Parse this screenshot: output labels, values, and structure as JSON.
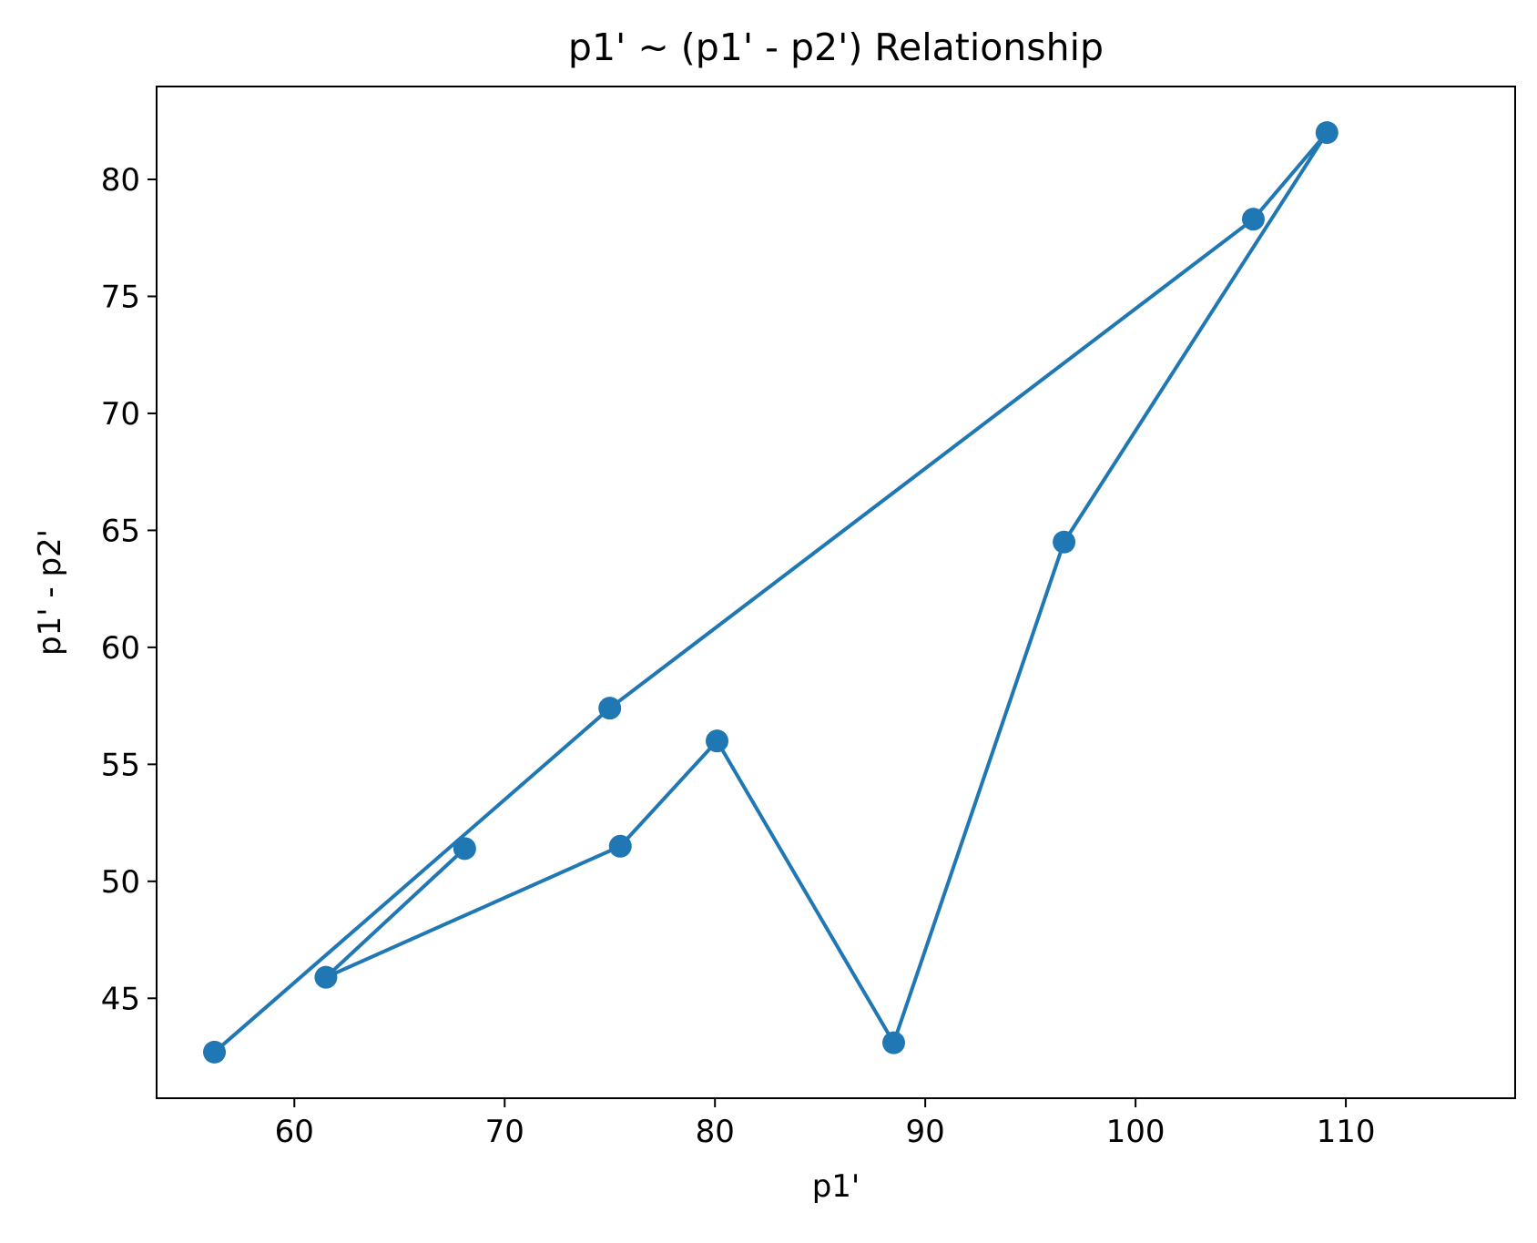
{
  "chart_data": {
    "type": "line",
    "title": "p1' ~ (p1' - p2') Relationship",
    "xlabel": "p1'",
    "ylabel": "p1' - p2'",
    "xlim": [
      53.45,
      118.05
    ],
    "ylim": [
      40.73,
      83.97
    ],
    "xticks": [
      60,
      70,
      80,
      90,
      100,
      110
    ],
    "yticks": [
      45,
      50,
      55,
      60,
      65,
      70,
      75,
      80
    ],
    "grid": false,
    "legend": "none",
    "marker": "circle",
    "series": [
      {
        "color": "#1f77b4",
        "x": [
          56.2,
          75.0,
          105.6,
          109.1,
          96.6,
          88.5,
          80.1,
          75.5,
          61.5,
          68.1
        ],
        "y": [
          42.7,
          57.4,
          78.3,
          82.0,
          64.5,
          43.1,
          56.0,
          51.5,
          45.9,
          51.4
        ]
      }
    ]
  }
}
